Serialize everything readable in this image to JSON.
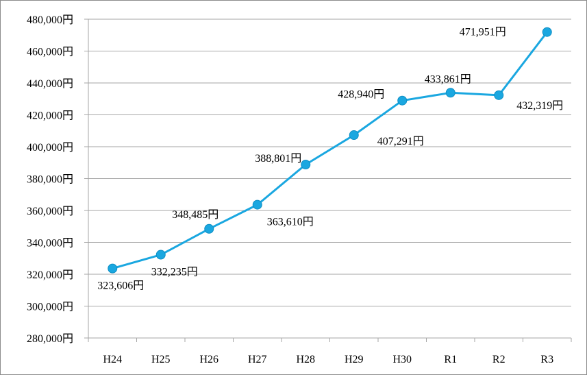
{
  "chart_data": {
    "type": "line",
    "title": "",
    "xlabel": "",
    "ylabel": "",
    "categories": [
      "H24",
      "H25",
      "H26",
      "H27",
      "H28",
      "H29",
      "H30",
      "R1",
      "R2",
      "R3"
    ],
    "series": [
      {
        "values": [
          323606,
          332235,
          348485,
          363610,
          388801,
          407291,
          428940,
          433861,
          432319,
          471951
        ]
      }
    ],
    "data_labels": [
      "323,606円",
      "332,235円",
      "348,485円",
      "363,610円",
      "388,801円",
      "407,291円",
      "428,940円",
      "433,861円",
      "432,319円",
      "471,951円"
    ],
    "ylim": [
      280000,
      480000
    ],
    "y_tick_values": [
      280000,
      300000,
      320000,
      340000,
      360000,
      380000,
      400000,
      420000,
      440000,
      460000,
      480000
    ],
    "y_tick_labels": [
      "280,000円",
      "300,000円",
      "320,000円",
      "340,000円",
      "360,000円",
      "380,000円",
      "400,000円",
      "420,000円",
      "440,000円",
      "460,000円",
      "480,000円"
    ],
    "grid": true,
    "legend": "none",
    "colors": {
      "line": "#1aa7e0",
      "marker": "#1aa7e0",
      "grid": "#a6a6a6",
      "axis": "#a6a6a6"
    }
  }
}
